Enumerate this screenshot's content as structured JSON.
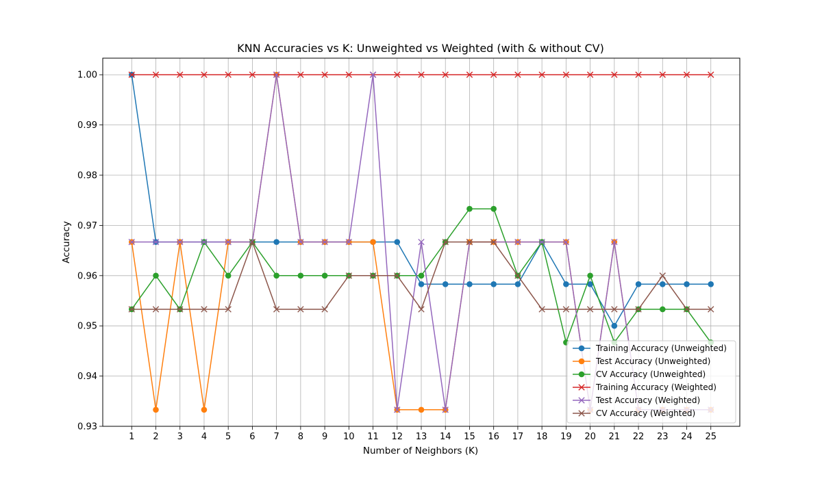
{
  "chart_data": {
    "type": "line",
    "title": "KNN Accuracies vs K: Unweighted vs Weighted (with & without CV)",
    "xlabel": "Number of Neighbors (K)",
    "ylabel": "Accuracy",
    "x": [
      1,
      2,
      3,
      4,
      5,
      6,
      7,
      8,
      9,
      10,
      11,
      12,
      13,
      14,
      15,
      16,
      17,
      18,
      19,
      20,
      21,
      22,
      23,
      24,
      25
    ],
    "xlim": [
      -0.2,
      26.2
    ],
    "ylim": [
      0.93,
      1.0033
    ],
    "yticks": [
      0.93,
      0.94,
      0.95,
      0.96,
      0.97,
      0.98,
      0.99,
      1.0
    ],
    "ytick_labels": [
      "0.93",
      "0.94",
      "0.95",
      "0.96",
      "0.97",
      "0.98",
      "0.99",
      "1.00"
    ],
    "grid": true,
    "legend_position": "lower-right",
    "series": [
      {
        "name": "Training Accuracy (Unweighted)",
        "color": "#1f77b4",
        "marker": "circle",
        "values": [
          1.0,
          0.9667,
          0.9667,
          0.9667,
          0.9667,
          0.9667,
          0.9667,
          0.9667,
          0.9667,
          0.9667,
          0.9667,
          0.9667,
          0.9583,
          0.9583,
          0.9583,
          0.9583,
          0.9583,
          0.9667,
          0.9583,
          0.9583,
          0.95,
          0.9583,
          0.9583,
          0.9583,
          0.9583
        ]
      },
      {
        "name": "Test Accuracy (Unweighted)",
        "color": "#ff7f0e",
        "marker": "circle",
        "values": [
          0.9667,
          0.9333,
          0.9667,
          0.9333,
          0.9667,
          0.9667,
          1.0,
          0.9667,
          0.9667,
          0.9667,
          0.9667,
          0.9333,
          0.9333,
          0.9333,
          0.9667,
          0.9667,
          0.9667,
          0.9667,
          0.9667,
          0.9333,
          0.9667,
          0.9333,
          0.9333,
          0.9333,
          0.9333
        ]
      },
      {
        "name": "CV Accuracy (Unweighted)",
        "color": "#2ca02c",
        "marker": "circle",
        "values": [
          0.9533,
          0.96,
          0.9533,
          0.9667,
          0.96,
          0.9667,
          0.96,
          0.96,
          0.96,
          0.96,
          0.96,
          0.96,
          0.96,
          0.9667,
          0.9733,
          0.9733,
          0.96,
          0.9667,
          0.9467,
          0.96,
          0.9467,
          0.9533,
          0.9533,
          0.9533,
          0.9467
        ]
      },
      {
        "name": "Training Accuracy (Weighted)",
        "color": "#d62728",
        "marker": "x",
        "values": [
          1.0,
          1.0,
          1.0,
          1.0,
          1.0,
          1.0,
          1.0,
          1.0,
          1.0,
          1.0,
          1.0,
          1.0,
          1.0,
          1.0,
          1.0,
          1.0,
          1.0,
          1.0,
          1.0,
          1.0,
          1.0,
          1.0,
          1.0,
          1.0,
          1.0
        ]
      },
      {
        "name": "Test Accuracy (Weighted)",
        "color": "#9467bd",
        "marker": "x",
        "values": [
          0.9667,
          0.9667,
          0.9667,
          0.9667,
          0.9667,
          0.9667,
          1.0,
          0.9667,
          0.9667,
          0.9667,
          1.0,
          0.9333,
          0.9667,
          0.9333,
          0.9667,
          0.9667,
          0.9667,
          0.9667,
          0.9667,
          0.9333,
          0.9667,
          0.9333,
          0.9333,
          0.9333,
          0.9333
        ]
      },
      {
        "name": "CV Accuracy (Weighted)",
        "color": "#8c564b",
        "marker": "x",
        "values": [
          0.9533,
          0.9533,
          0.9533,
          0.9533,
          0.9533,
          0.9667,
          0.9533,
          0.9533,
          0.9533,
          0.96,
          0.96,
          0.96,
          0.9533,
          0.9667,
          0.9667,
          0.9667,
          0.96,
          0.9533,
          0.9533,
          0.9533,
          0.9533,
          0.9533,
          0.96,
          0.9533,
          0.9533
        ]
      }
    ]
  }
}
